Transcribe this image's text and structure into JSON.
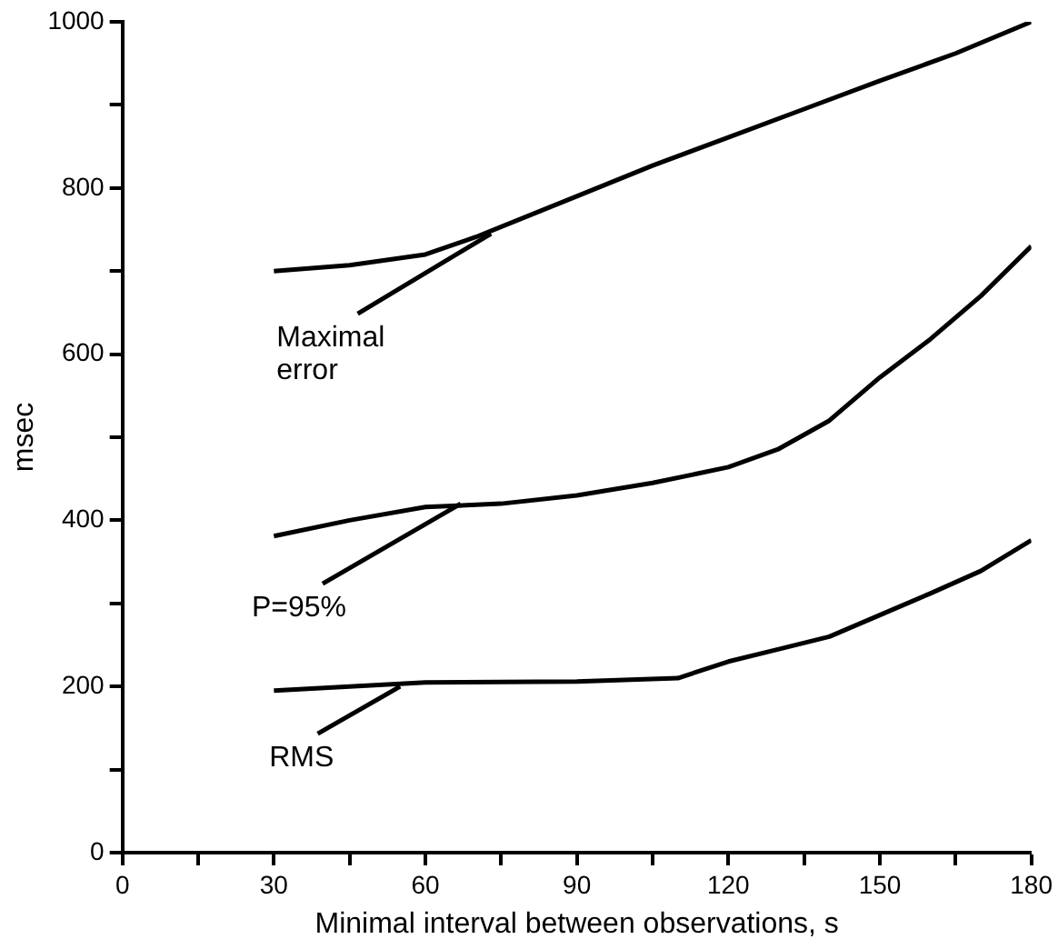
{
  "chart_data": {
    "type": "line",
    "xlabel": "Minimal interval between observations, s",
    "ylabel": "msec",
    "xlim": [
      0,
      180
    ],
    "ylim": [
      0,
      1000
    ],
    "xticks": [
      0,
      {
        "value": 15,
        "label": null
      },
      30,
      {
        "value": 45,
        "label": null
      },
      60,
      {
        "value": 75,
        "label": null
      },
      90,
      {
        "value": 105,
        "label": null
      },
      120,
      {
        "value": 135,
        "label": null
      },
      150,
      {
        "value": 165,
        "label": null
      },
      180
    ],
    "yticks": [
      0,
      {
        "value": 100,
        "label": null
      },
      200,
      {
        "value": 300,
        "label": null
      },
      400,
      {
        "value": 500,
        "label": null
      },
      600,
      {
        "value": 700,
        "label": null
      },
      800,
      {
        "value": 900,
        "label": null
      },
      1000
    ],
    "grid": false,
    "legend": false,
    "marker": "none",
    "line_style": "solid",
    "series": [
      {
        "color": "#000000",
        "x": [
          30,
          45,
          60,
          70,
          90,
          105,
          120,
          135,
          150,
          165,
          180
        ],
        "values": [
          700,
          707,
          720,
          741,
          790,
          827,
          861,
          895,
          929,
          962,
          1000
        ]
      },
      {
        "color": "#000000",
        "x": [
          30,
          45,
          60,
          75,
          90,
          105,
          120,
          130,
          140,
          150,
          160,
          170,
          180
        ],
        "values": [
          381,
          400,
          416,
          420,
          430,
          445,
          464,
          486,
          520,
          572,
          618,
          670,
          730
        ]
      },
      {
        "color": "#000000",
        "x": [
          30,
          45,
          60,
          90,
          110,
          120,
          130,
          140,
          150,
          160,
          170,
          180
        ],
        "values": [
          195,
          200,
          205,
          206,
          210,
          230,
          245,
          260,
          286,
          312,
          339,
          376
        ]
      }
    ],
    "annotations": [
      {
        "text": "Maximal\nerror",
        "x": 73,
        "y": 745
      },
      {
        "text": "P=95%",
        "x": 67,
        "y": 420
      },
      {
        "text": "RMS",
        "x": 55,
        "y": 200
      }
    ]
  }
}
